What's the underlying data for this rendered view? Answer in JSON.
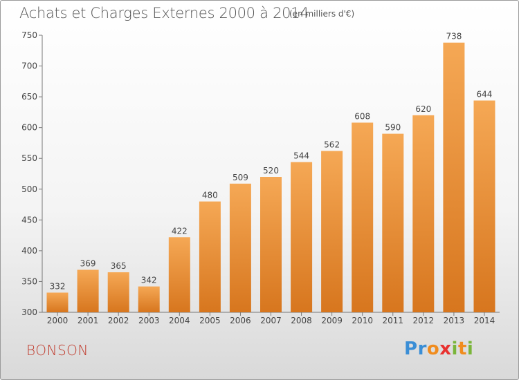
{
  "chart_data": {
    "type": "bar",
    "title": "Achats et Charges Externes 2000 à 2014",
    "subtitle": "(en milliers d'€)",
    "xlabel": "",
    "ylabel": "",
    "categories": [
      "2000",
      "2001",
      "2002",
      "2003",
      "2004",
      "2005",
      "2006",
      "2007",
      "2008",
      "2009",
      "2010",
      "2011",
      "2012",
      "2013",
      "2014"
    ],
    "values": [
      332,
      369,
      365,
      342,
      422,
      480,
      509,
      520,
      544,
      562,
      608,
      590,
      620,
      738,
      644
    ],
    "ylim": [
      300,
      750
    ],
    "yticks": [
      300,
      350,
      400,
      450,
      500,
      550,
      600,
      650,
      700,
      750
    ],
    "grid": false,
    "bar_color_top": "#f5a855",
    "bar_color_bottom": "#d7761e"
  },
  "footer": {
    "location": "BONSON",
    "logo_letters": [
      {
        "ch": "P",
        "color": "#3a8ed6"
      },
      {
        "ch": "r",
        "color": "#3a8ed6"
      },
      {
        "ch": "o",
        "color": "#f08c1e"
      },
      {
        "ch": "x",
        "color": "#e8312f"
      },
      {
        "ch": "i",
        "color": "#7ab53a"
      },
      {
        "ch": "t",
        "color": "#f08c1e"
      },
      {
        "ch": "i",
        "color": "#7ab53a"
      }
    ]
  }
}
